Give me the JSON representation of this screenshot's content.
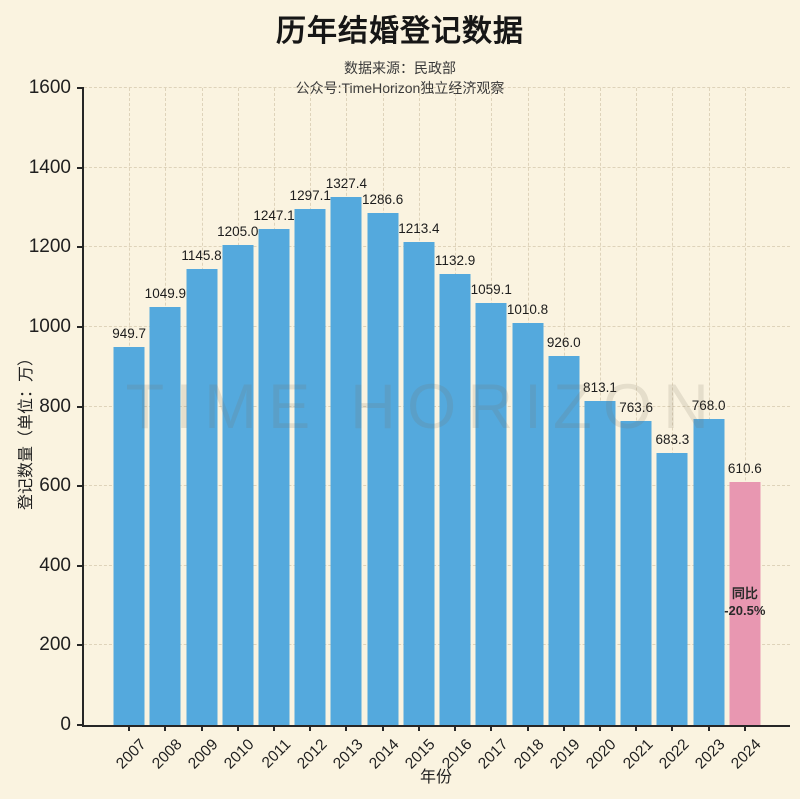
{
  "header": {
    "title": "历年结婚登记数据",
    "subtitle_line1": "数据来源：民政部",
    "subtitle_line2": "公众号:TimeHorizon独立经济观察"
  },
  "watermark": "TIME HORIZON",
  "colors": {
    "background": "#faf3e0",
    "bar": "#54a9dd",
    "bar_highlight": "#e897b1",
    "axis": "#262626",
    "text": "#1f1f1f",
    "grid": "rgba(160,140,100,0.30)"
  },
  "chart_data": {
    "type": "bar",
    "title": "历年结婚登记数据",
    "subtitle": [
      "数据来源：民政部",
      "公众号:TimeHorizon独立经济观察"
    ],
    "xlabel": "年份",
    "ylabel": "登记数量（单位：万）",
    "categories": [
      "2007",
      "2008",
      "2009",
      "2010",
      "2011",
      "2012",
      "2013",
      "2014",
      "2015",
      "2016",
      "2017",
      "2018",
      "2019",
      "2020",
      "2021",
      "2022",
      "2023",
      "2024"
    ],
    "values": [
      949.7,
      1049.9,
      1145.8,
      1205.0,
      1247.1,
      1297.1,
      1327.4,
      1286.6,
      1213.4,
      1132.9,
      1059.1,
      1010.8,
      926.0,
      813.1,
      763.6,
      683.3,
      768.0,
      610.6
    ],
    "value_label_decimals": 1,
    "ylim": [
      0,
      1600
    ],
    "ytick_interval": 200,
    "grid": true,
    "legend": false,
    "highlight": {
      "category": "2024",
      "index": 17,
      "color": "#e897b1",
      "annotation_lines": [
        "同比",
        "-20.5%"
      ]
    },
    "watermark": "TIME HORIZON"
  }
}
